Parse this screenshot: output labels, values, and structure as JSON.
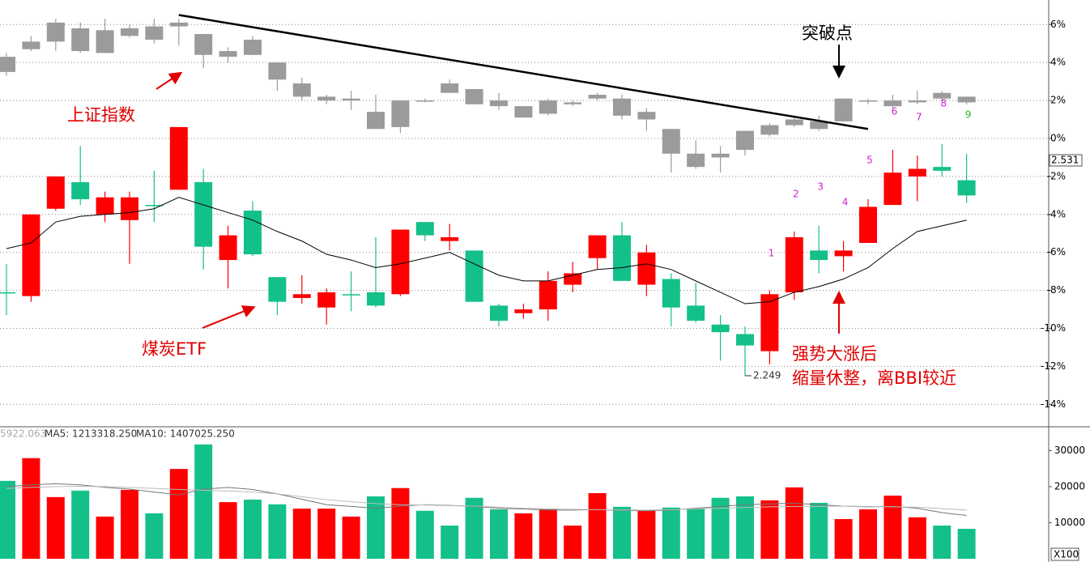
{
  "chart_data": [
    {
      "type": "candlestick",
      "ylim": [
        -15.18,
        7.29
      ],
      "yticks": [
        {
          "value": 6,
          "label": "6%"
        },
        {
          "value": 4,
          "label": "4%"
        },
        {
          "value": 2,
          "label": "2%"
        },
        {
          "value": 0,
          "label": "0%"
        },
        {
          "value": -2,
          "label": "-2%"
        },
        {
          "value": -4,
          "label": "-4%"
        },
        {
          "value": -6,
          "label": "-6%"
        },
        {
          "value": -8,
          "label": "-8%"
        },
        {
          "value": -10,
          "label": "-10%"
        },
        {
          "value": -12,
          "label": "-12%"
        },
        {
          "value": -14,
          "label": "-14%"
        }
      ],
      "grid": true,
      "series": [
        {
          "name": "上证指数",
          "color": "#9b9b9b",
          "open": [
            3.5,
            4.7,
            5.1,
            4.6,
            4.5,
            5.4,
            5.2,
            5.9,
            5.5,
            4.3,
            5.2,
            4.0,
            2.9,
            2.2,
            2.1,
            0.5,
            0.6,
            2.0,
            2.4,
            2.6,
            2.0,
            1.7,
            1.3,
            1.9,
            2.1,
            2.1,
            1.4,
            0.5,
            -0.8,
            -1.0,
            -0.6,
            0.2,
            0.7,
            0.9,
            0.9,
            2.0,
            1.7,
            1.9,
            2.1,
            2.2
          ],
          "close": [
            4.3,
            5.1,
            6.1,
            5.8,
            5.7,
            5.8,
            5.9,
            6.1,
            4.4,
            4.6,
            4.4,
            3.1,
            2.2,
            2.0,
            2.0,
            1.4,
            2.0,
            2.0,
            2.9,
            1.8,
            1.7,
            1.1,
            2.0,
            1.8,
            2.3,
            1.2,
            1.0,
            -0.8,
            -1.5,
            -0.8,
            0.4,
            0.7,
            1.0,
            0.5,
            2.1,
            2.0,
            2.0,
            2.0,
            2.4,
            1.9
          ],
          "high": [
            4.5,
            5.4,
            6.3,
            6.1,
            6.3,
            6.0,
            6.3,
            6.3,
            5.5,
            4.8,
            5.4,
            4.0,
            3.2,
            2.3,
            2.5,
            2.3,
            2.0,
            2.1,
            3.1,
            2.6,
            2.4,
            1.7,
            2.1,
            2.0,
            2.4,
            2.3,
            1.6,
            0.5,
            -0.1,
            -0.4,
            0.4,
            0.8,
            1.1,
            1.2,
            2.1,
            2.1,
            2.3,
            2.5,
            2.5,
            2.2
          ],
          "low": [
            3.3,
            4.6,
            4.6,
            4.5,
            4.5,
            5.3,
            5.0,
            4.9,
            3.7,
            4.0,
            4.4,
            2.5,
            2.0,
            1.8,
            1.5,
            0.5,
            0.3,
            1.9,
            2.4,
            1.8,
            1.5,
            1.1,
            1.2,
            1.7,
            2.0,
            1.0,
            0.4,
            -1.8,
            -1.6,
            -1.8,
            -0.9,
            0.1,
            0.6,
            0.4,
            0.9,
            1.8,
            1.6,
            1.8,
            2.0,
            1.8
          ]
        },
        {
          "name": "煤炭ETF",
          "up_color": "#ff0000",
          "down_color": "#14c08a",
          "open": [
            -8.1,
            -8.3,
            -3.7,
            -2.3,
            -4.0,
            -4.3,
            -3.5,
            -2.7,
            -2.3,
            -6.4,
            -3.8,
            -7.3,
            -8.4,
            -8.9,
            -8.2,
            -8.1,
            -8.2,
            -4.4,
            -5.4,
            -5.9,
            -8.8,
            -9.2,
            -9.0,
            -7.7,
            -6.3,
            -5.1,
            -7.7,
            -7.4,
            -8.8,
            -9.8,
            -10.3,
            -11.2,
            -8.1,
            -5.9,
            -6.2,
            -5.5,
            -3.5,
            -2.0,
            -1.5,
            -2.2
          ],
          "close": [
            -8.1,
            -4.0,
            -2.0,
            -3.2,
            -3.1,
            -3.1,
            -3.5,
            0.6,
            -5.7,
            -5.1,
            -6.1,
            -8.6,
            -8.2,
            -8.1,
            -8.2,
            -8.8,
            -4.8,
            -5.1,
            -5.2,
            -8.6,
            -9.6,
            -9.0,
            -7.5,
            -7.1,
            -5.1,
            -7.5,
            -6.0,
            -8.9,
            -9.6,
            -10.2,
            -10.9,
            -8.2,
            -5.2,
            -6.4,
            -5.9,
            -3.6,
            -1.8,
            -1.6,
            -1.7,
            -3.0
          ],
          "high": [
            -6.6,
            -4.0,
            -2.0,
            -0.4,
            -2.8,
            -2.8,
            -1.7,
            0.6,
            -1.6,
            -4.6,
            -3.3,
            -7.3,
            -7.2,
            -7.9,
            -7.0,
            -5.2,
            -4.8,
            -4.4,
            -4.5,
            -5.9,
            -8.7,
            -8.7,
            -7.0,
            -6.5,
            -5.1,
            -4.4,
            -5.6,
            -7.1,
            -7.6,
            -9.3,
            -9.9,
            -8.0,
            -4.9,
            -4.6,
            -5.4,
            -3.2,
            -0.6,
            -0.9,
            -0.3,
            -0.8
          ],
          "low": [
            -9.3,
            -8.6,
            -3.8,
            -3.5,
            -4.4,
            -6.6,
            -4.4,
            -2.7,
            -6.9,
            -7.9,
            -6.2,
            -9.3,
            -8.7,
            -9.8,
            -9.1,
            -8.9,
            -8.3,
            -5.4,
            -5.9,
            -8.6,
            -9.9,
            -9.5,
            -9.6,
            -8.1,
            -6.9,
            -7.5,
            -8.3,
            -9.9,
            -9.7,
            -11.7,
            -12.5,
            -11.9,
            -8.5,
            -7.1,
            -7.0,
            -5.5,
            -3.5,
            -3.3,
            -2.0,
            -3.4
          ]
        }
      ],
      "line": {
        "color": "#000000",
        "values": [
          -5.8,
          -5.5,
          -4.4,
          -4.1,
          -4.0,
          -3.9,
          -3.7,
          -3.1,
          -3.5,
          -3.9,
          -4.3,
          -4.9,
          -5.4,
          -6.1,
          -6.4,
          -6.8,
          -6.6,
          -6.3,
          -6.0,
          -6.6,
          -7.2,
          -7.5,
          -7.5,
          -7.2,
          -6.9,
          -6.8,
          -6.6,
          -6.9,
          -7.5,
          -8.1,
          -8.7,
          -8.6,
          -8.1,
          -7.8,
          -7.4,
          -6.8,
          -5.8,
          -4.9,
          -4.6,
          -4.3
        ]
      },
      "trendline": {
        "x": [
          7,
          35
        ],
        "values": [
          6.5,
          0.5
        ]
      },
      "last_price_label": "2.531",
      "low_price_label": "2.249",
      "count_labels": [
        "1",
        "2",
        "3",
        "4",
        "5",
        "6",
        "7",
        "8",
        "9"
      ],
      "annotations": [
        "突破点",
        "强势大涨后",
        "缩量休整，离BBI较近"
      ]
    },
    {
      "type": "bar",
      "ylim": [
        0,
        36600
      ],
      "yticks": [
        10000,
        20000,
        30000
      ],
      "unit_label": "X100",
      "header": [
        "5922.063",
        "MA5: 1213318.250",
        "MA10: 1407025.250"
      ],
      "values": [
        21600,
        27900,
        17100,
        18900,
        11700,
        19100,
        12600,
        24900,
        31700,
        15700,
        16400,
        15100,
        13900,
        13900,
        11700,
        17300,
        19600,
        13300,
        9200,
        16900,
        13700,
        12600,
        13900,
        9200,
        18200,
        14400,
        13300,
        14200,
        13900,
        16900,
        17300,
        16200,
        19800,
        15500,
        11000,
        13700,
        17500,
        11500,
        9200,
        8300
      ],
      "colors": [
        "#14c08a",
        "#ff0000",
        "#ff0000",
        "#14c08a",
        "#ff0000",
        "#ff0000",
        "#14c08a",
        "#ff0000",
        "#14c08a",
        "#ff0000",
        "#14c08a",
        "#14c08a",
        "#ff0000",
        "#ff0000",
        "#ff0000",
        "#14c08a",
        "#ff0000",
        "#14c08a",
        "#14c08a",
        "#14c08a",
        "#14c08a",
        "#ff0000",
        "#ff0000",
        "#ff0000",
        "#ff0000",
        "#14c08a",
        "#ff0000",
        "#14c08a",
        "#14c08a",
        "#14c08a",
        "#14c08a",
        "#ff0000",
        "#ff0000",
        "#14c08a",
        "#ff0000",
        "#ff0000",
        "#ff0000",
        "#ff0000",
        "#14c08a",
        "#14c08a"
      ],
      "lines": [
        {
          "name": "MA5",
          "color": "#777777",
          "values": [
            20000,
            20500,
            20800,
            20500,
            19800,
            19300,
            18500,
            17700,
            19300,
            19800,
            19200,
            18000,
            16500,
            15000,
            14500,
            14000,
            14600,
            15000,
            14800,
            14500,
            14000,
            13800,
            13500,
            13500,
            13600,
            13400,
            13300,
            13500,
            14000,
            14500,
            15000,
            15200,
            15400,
            15000,
            14600,
            14400,
            14500,
            14000,
            12800,
            12000
          ]
        },
        {
          "name": "MA10",
          "color": "#bbbbbb",
          "values": [
            19500,
            19800,
            20000,
            20100,
            20000,
            19800,
            19500,
            19200,
            19000,
            18800,
            18500,
            18000,
            17200,
            16400,
            15800,
            15300,
            15000,
            14900,
            14700,
            14600,
            14300,
            14000,
            13800,
            13700,
            13600,
            13500,
            13500,
            13600,
            13800,
            14000,
            14200,
            14400,
            14500,
            14500,
            14600,
            14500,
            14400,
            14300,
            13900,
            13500
          ]
        }
      ]
    }
  ]
}
